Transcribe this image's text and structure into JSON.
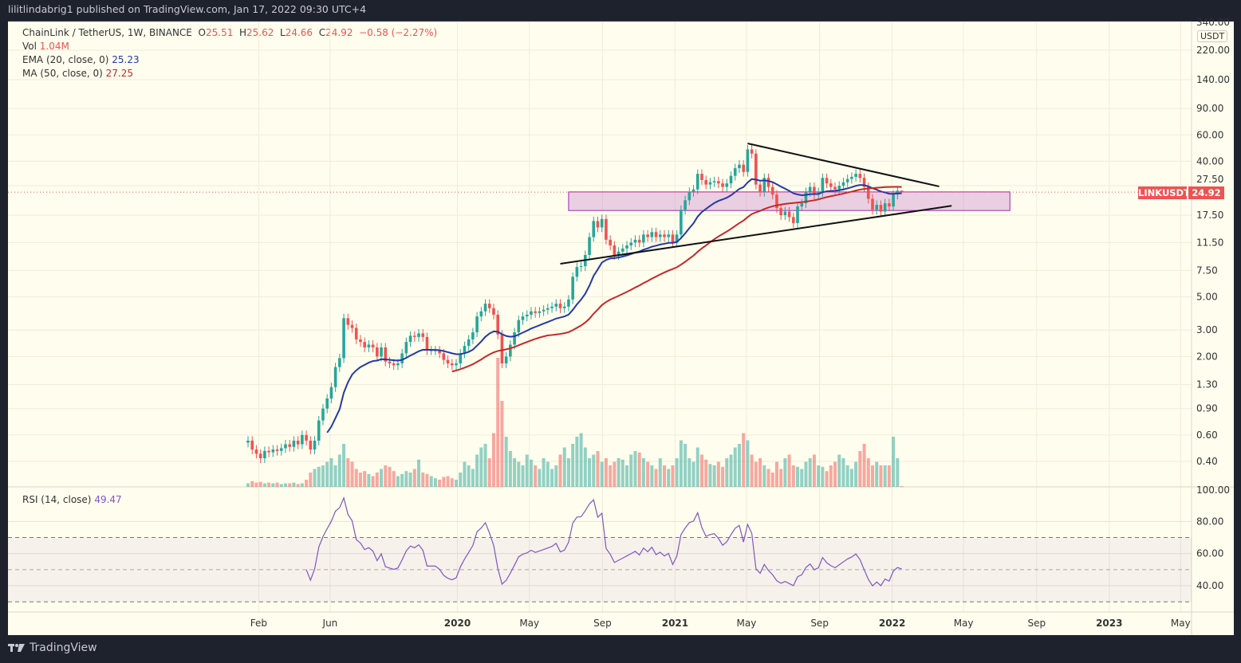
{
  "header": {
    "published": "lilitlindabrig1 published on TradingView.com, Jan 17, 2022 09:30 UTC+4"
  },
  "legend": {
    "symbol": "ChainLink / TetherUS, 1W, BINANCE",
    "open_label": "O",
    "open": "25.51",
    "high_label": "H",
    "high": "25.62",
    "low_label": "L",
    "low": "24.66",
    "close_label": "C",
    "close": "24.92",
    "change": "−0.58 (−2.27%)",
    "vol_label": "Vol",
    "vol": "1.04M",
    "ema_label": "EMA (20, close, 0)",
    "ema_value": "25.23",
    "ma_label": "MA (50, close, 0)",
    "ma_value": "27.25",
    "rsi_label": "RSI (14, close)",
    "rsi_value": "49.47"
  },
  "price_axis": {
    "currency": "USDT",
    "last_symbol": "LINKUSDT",
    "last_price": "24.92"
  },
  "footer": {
    "brand": "TradingView"
  },
  "colors": {
    "up": "#26a69a",
    "down": "#ef5350",
    "ema": "#2339a8",
    "ma": "#c62828",
    "rsi": "#7e57c2",
    "zone": "#9c27b0",
    "background": "#fffdee"
  },
  "chart_data": {
    "type": "candlestick",
    "interval": "1W",
    "y_scale": "log",
    "first_week": "2019-01-14",
    "closes": [
      0.55,
      0.48,
      0.45,
      0.42,
      0.47,
      0.46,
      0.48,
      0.47,
      0.49,
      0.52,
      0.5,
      0.55,
      0.52,
      0.6,
      0.55,
      0.48,
      0.55,
      0.75,
      0.9,
      1.05,
      1.25,
      1.7,
      1.95,
      3.6,
      3.25,
      3.1,
      2.6,
      2.5,
      2.3,
      2.4,
      2.3,
      2.0,
      2.3,
      1.85,
      1.8,
      1.75,
      1.8,
      2.1,
      2.5,
      2.75,
      2.7,
      2.85,
      2.7,
      2.2,
      2.2,
      2.2,
      2.1,
      1.9,
      1.8,
      1.75,
      1.8,
      2.1,
      2.35,
      2.6,
      2.9,
      3.7,
      4.0,
      4.5,
      4.2,
      3.8,
      2.8,
      1.8,
      2.0,
      2.4,
      2.9,
      3.5,
      3.7,
      3.8,
      4.0,
      3.9,
      4.0,
      4.1,
      4.2,
      4.3,
      4.5,
      4.2,
      4.3,
      4.8,
      6.8,
      7.9,
      8.0,
      9.5,
      12.5,
      16.0,
      14.5,
      16.5,
      12.0,
      11.0,
      9.5,
      10.0,
      10.5,
      11.0,
      11.5,
      12.0,
      11.5,
      13.0,
      12.5,
      13.5,
      12.5,
      13.0,
      12.5,
      13.0,
      11.5,
      13.0,
      19.0,
      22.0,
      25.0,
      26.0,
      33.0,
      30.0,
      28.0,
      29.0,
      29.5,
      28.5,
      27.0,
      28.5,
      32.0,
      36.0,
      38.0,
      34.0,
      48.0,
      45.0,
      28.0,
      25.0,
      31.0,
      27.0,
      24.0,
      19.5,
      17.5,
      18.5,
      17.0,
      15.5,
      20.0,
      21.0,
      25.0,
      27.0,
      24.0,
      25.0,
      31.0,
      28.5,
      27.0,
      26.0,
      27.5,
      29.0,
      30.5,
      31.5,
      33.0,
      31.0,
      27.0,
      22.5,
      19.0,
      20.5,
      18.5,
      21.0,
      20.0,
      24.0,
      25.51,
      24.92
    ],
    "last_candle": {
      "open": 25.51,
      "high": 25.62,
      "low": 24.66,
      "close": 24.92
    },
    "volumes_m": [
      5,
      8,
      6,
      7,
      5,
      6,
      5,
      6,
      4,
      5,
      5,
      6,
      4,
      5,
      10,
      20,
      25,
      28,
      30,
      35,
      40,
      30,
      45,
      60,
      40,
      35,
      25,
      20,
      22,
      18,
      15,
      20,
      25,
      30,
      28,
      22,
      15,
      18,
      22,
      20,
      25,
      38,
      20,
      18,
      15,
      12,
      10,
      14,
      15,
      12,
      10,
      20,
      35,
      30,
      25,
      45,
      55,
      60,
      40,
      75,
      180,
      120,
      70,
      50,
      40,
      35,
      30,
      45,
      38,
      30,
      25,
      40,
      35,
      25,
      30,
      45,
      55,
      40,
      60,
      70,
      75,
      55,
      40,
      45,
      50,
      35,
      40,
      30,
      35,
      40,
      38,
      30,
      45,
      50,
      48,
      40,
      35,
      30,
      25,
      40,
      30,
      25,
      30,
      40,
      65,
      60,
      40,
      35,
      55,
      45,
      38,
      32,
      30,
      35,
      28,
      40,
      45,
      55,
      60,
      75,
      65,
      45,
      35,
      40,
      30,
      25,
      20,
      35,
      25,
      40,
      45,
      30,
      28,
      25,
      35,
      40,
      45,
      30,
      28,
      22,
      30,
      35,
      45,
      40,
      30,
      25,
      35,
      50,
      60,
      40,
      30,
      35,
      30,
      30,
      30,
      70,
      40,
      1.04
    ],
    "indicators": {
      "ema_period": 20,
      "ma_period": 50,
      "rsi_period": 14,
      "rsi_bands": [
        70,
        50,
        30
      ]
    },
    "drawings": {
      "upper_trendline": [
        {
          "date": "2021-05-03",
          "price": 52.6
        },
        {
          "date": "2022-03-21",
          "price": 27.2
        }
      ],
      "lower_trendline": [
        {
          "date": "2020-06-22",
          "price": 8.3
        },
        {
          "date": "2022-04-11",
          "price": 20.2
        }
      ],
      "support_zone": {
        "from": "2020-07-06",
        "to": "2022-07-18",
        "top": 25.0,
        "bottom": 18.8
      }
    },
    "y_ticks": [
      "340.00",
      "220.00",
      "140.00",
      "90.00",
      "60.00",
      "40.00",
      "27.50",
      "17.50",
      "11.50",
      "7.50",
      "5.00",
      "3.00",
      "2.00",
      "1.30",
      "0.90",
      "0.60",
      "0.40"
    ],
    "rsi_ticks": [
      "100.00",
      "80.00",
      "60.00",
      "40.00"
    ],
    "x_ticks": [
      {
        "date": "2019-02-01",
        "label": "Feb",
        "bold": false
      },
      {
        "date": "2019-06-01",
        "label": "Jun",
        "bold": false
      },
      {
        "date": "2020-01-01",
        "label": "2020",
        "bold": true
      },
      {
        "date": "2020-05-01",
        "label": "May",
        "bold": false
      },
      {
        "date": "2020-09-01",
        "label": "Sep",
        "bold": false
      },
      {
        "date": "2021-01-01",
        "label": "2021",
        "bold": true
      },
      {
        "date": "2021-05-01",
        "label": "May",
        "bold": false
      },
      {
        "date": "2021-09-01",
        "label": "Sep",
        "bold": false
      },
      {
        "date": "2022-01-01",
        "label": "2022",
        "bold": true
      },
      {
        "date": "2022-05-01",
        "label": "May",
        "bold": false
      },
      {
        "date": "2022-09-01",
        "label": "Sep",
        "bold": false
      },
      {
        "date": "2023-01-01",
        "label": "2023",
        "bold": true
      },
      {
        "date": "2023-05-01",
        "label": "May",
        "bold": false
      }
    ]
  }
}
